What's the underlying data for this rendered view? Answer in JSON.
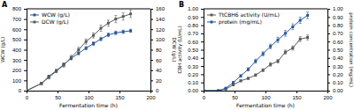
{
  "chart_data": [
    {
      "type": "line",
      "title": "A",
      "xlabel": "Fermentation time (h)",
      "ylabel": "WCW (g/L)",
      "y2label": "DCW (g/L)",
      "x": [
        0,
        24,
        36,
        48,
        60,
        72,
        84,
        96,
        108,
        120,
        132,
        144,
        156,
        168
      ],
      "series": [
        {
          "name": "WCW (g/L)",
          "color": "#2457a0",
          "marker": "square",
          "axis": "y",
          "values": [
            0,
            70,
            140,
            195,
            255,
            315,
            365,
            415,
            460,
            505,
            545,
            565,
            575,
            585
          ],
          "errors": [
            3,
            7,
            10,
            12,
            13,
            14,
            15,
            16,
            17,
            17,
            18,
            17,
            16,
            15
          ]
        },
        {
          "name": "DCW (g/L)",
          "color": "#5a5a5a",
          "marker": "square",
          "axis": "y2",
          "values": [
            0,
            14,
            26,
            38,
            50,
            65,
            80,
            96,
            108,
            122,
            132,
            140,
            145,
            150
          ],
          "errors": [
            1,
            2,
            3,
            3,
            4,
            4,
            5,
            5,
            5,
            6,
            6,
            7,
            7,
            7
          ]
        }
      ],
      "xlim": [
        0,
        200
      ],
      "xticks": [
        0,
        50,
        100,
        150,
        200
      ],
      "ylim": [
        0,
        800
      ],
      "yticks": [
        0,
        100,
        200,
        300,
        400,
        500,
        600,
        700,
        800
      ],
      "y2lim": [
        0,
        160
      ],
      "y2ticks": [
        0,
        20,
        40,
        60,
        80,
        100,
        120,
        140,
        160
      ],
      "legend": "upper left"
    },
    {
      "type": "line",
      "title": "B",
      "xlabel": "Fermentation time (h)",
      "ylabel": "CBH activity (U/mL)",
      "y2label": "protein concentration (mg/mL)",
      "x": [
        0,
        24,
        36,
        48,
        60,
        72,
        84,
        96,
        108,
        120,
        132,
        144,
        156,
        168
      ],
      "series": [
        {
          "name": "TtCBH6 activity (U/mL)",
          "color": "#5a5a5a",
          "marker": "square",
          "axis": "y",
          "values": [
            0,
            0,
            0.02,
            0.07,
            0.12,
            0.15,
            0.19,
            0.25,
            0.32,
            0.36,
            0.47,
            0.52,
            0.63,
            0.65
          ],
          "errors": [
            0,
            0.004,
            0.008,
            0.01,
            0.012,
            0.013,
            0.015,
            0.018,
            0.022,
            0.022,
            0.025,
            0.025,
            0.03,
            0.03
          ]
        },
        {
          "name": "protein (mg/mL)",
          "color": "#2457a0",
          "marker": "square",
          "axis": "y2",
          "values": [
            0,
            0,
            0.03,
            0.1,
            0.18,
            0.26,
            0.36,
            0.45,
            0.54,
            0.62,
            0.7,
            0.78,
            0.86,
            0.92
          ],
          "errors": [
            0,
            0.004,
            0.008,
            0.012,
            0.015,
            0.02,
            0.025,
            0.025,
            0.028,
            0.032,
            0.035,
            0.035,
            0.038,
            0.04
          ]
        }
      ],
      "xlim": [
        0,
        200
      ],
      "xticks": [
        0,
        50,
        100,
        150,
        200
      ],
      "ylim": [
        0,
        1.0
      ],
      "yticks": [
        {
          "value": 0.0,
          "label": "0.00"
        },
        {
          "value": 0.1,
          "label": "0.10"
        },
        {
          "value": 0.2,
          "label": "0.20"
        },
        {
          "value": 0.3,
          "label": "0.30"
        },
        {
          "value": 0.4,
          "label": "0.40"
        },
        {
          "value": 0.5,
          "label": "0.50"
        },
        {
          "value": 0.6,
          "label": "0.60"
        },
        {
          "value": 0.7,
          "label": "0.70"
        },
        {
          "value": 0.8,
          "label": "0.80"
        },
        {
          "value": 0.9,
          "label": "0.90"
        },
        {
          "value": 1.0,
          "label": "1.00"
        }
      ],
      "y2lim": [
        0,
        1.0
      ],
      "y2ticks": [
        {
          "value": 0.0,
          "label": "0.00"
        },
        {
          "value": 0.1,
          "label": "0.10"
        },
        {
          "value": 0.2,
          "label": "0.20"
        },
        {
          "value": 0.3,
          "label": "0.30"
        },
        {
          "value": 0.4,
          "label": "0.40"
        },
        {
          "value": 0.5,
          "label": "0.50"
        },
        {
          "value": 0.6,
          "label": "0.60"
        },
        {
          "value": 0.7,
          "label": "0.70"
        },
        {
          "value": 0.8,
          "label": "0.80"
        },
        {
          "value": 0.9,
          "label": "0.90"
        },
        {
          "value": 1.0,
          "label": "1.00"
        }
      ],
      "legend": "upper left"
    }
  ]
}
